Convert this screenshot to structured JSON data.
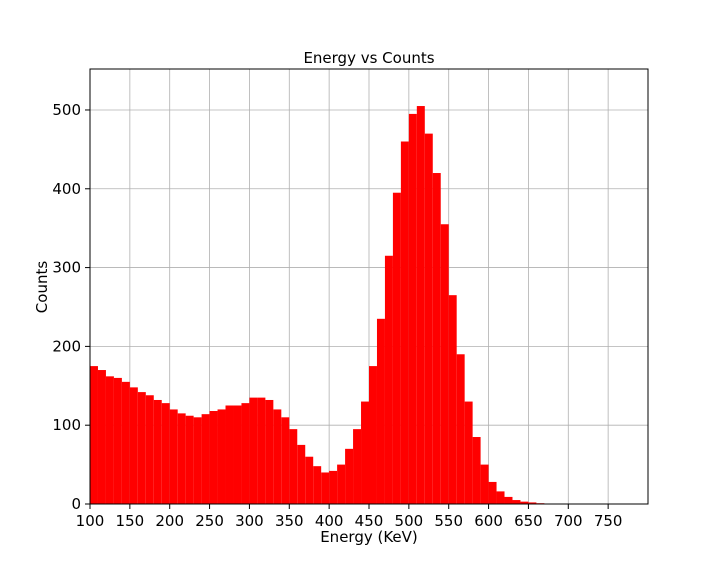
{
  "chart_data": {
    "type": "bar",
    "title": "Energy vs Counts",
    "xlabel": "Energy (KeV)",
    "ylabel": "Counts",
    "xlim": [
      100,
      800
    ],
    "ylim": [
      0,
      552
    ],
    "grid": true,
    "bar_color": "#ff0000",
    "x_ticks": [
      100,
      150,
      200,
      250,
      300,
      350,
      400,
      450,
      500,
      550,
      600,
      650,
      700,
      750
    ],
    "y_ticks": [
      0,
      100,
      200,
      300,
      400,
      500
    ],
    "bin_start": 100,
    "bin_width": 10,
    "x": [
      100,
      110,
      120,
      130,
      140,
      150,
      160,
      170,
      180,
      190,
      200,
      210,
      220,
      230,
      240,
      250,
      260,
      270,
      280,
      290,
      300,
      310,
      320,
      330,
      340,
      350,
      360,
      370,
      380,
      390,
      400,
      410,
      420,
      430,
      440,
      450,
      460,
      470,
      480,
      490,
      500,
      510,
      520,
      530,
      540,
      550,
      560,
      570,
      580,
      590,
      600,
      610,
      620,
      630,
      640,
      650,
      660,
      670,
      680,
      690,
      700,
      710,
      720,
      730,
      740,
      750,
      760,
      770,
      780,
      790
    ],
    "values": [
      175,
      170,
      162,
      160,
      155,
      148,
      142,
      138,
      132,
      128,
      120,
      115,
      112,
      110,
      114,
      118,
      120,
      125,
      125,
      128,
      135,
      135,
      132,
      120,
      110,
      95,
      75,
      60,
      48,
      40,
      42,
      50,
      70,
      95,
      130,
      175,
      235,
      315,
      395,
      460,
      495,
      505,
      470,
      420,
      355,
      265,
      190,
      130,
      85,
      50,
      28,
      16,
      9,
      5,
      3,
      2,
      1,
      0,
      0,
      0,
      0,
      0,
      0,
      0,
      0,
      0,
      0,
      0,
      0,
      0
    ]
  }
}
